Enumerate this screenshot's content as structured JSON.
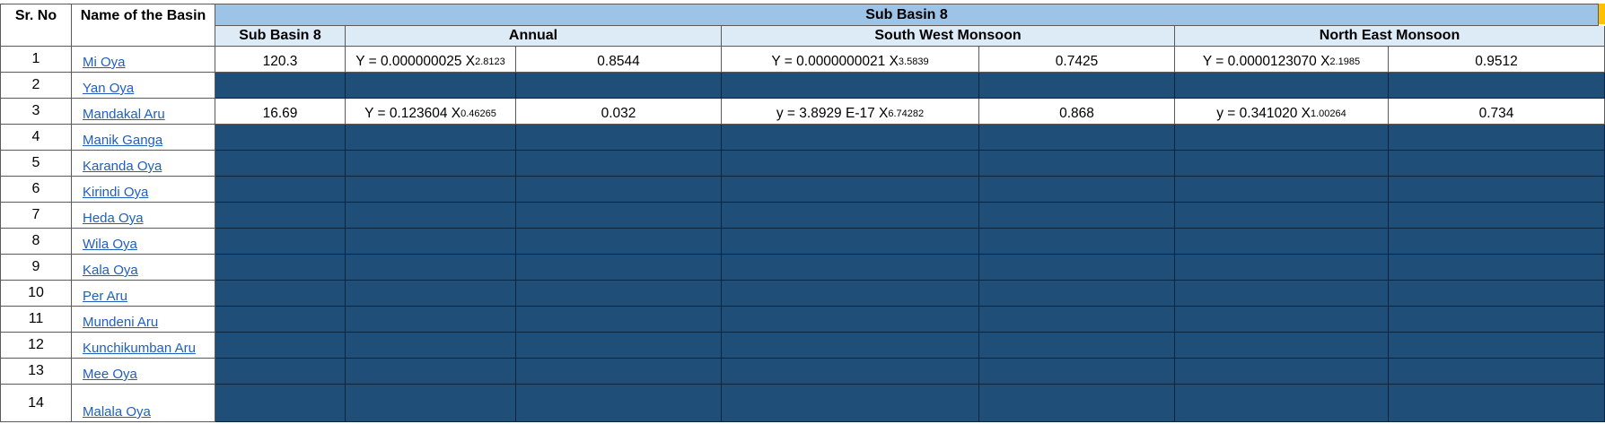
{
  "headers": {
    "sr_no": "Sr. No",
    "basin_name": "Name of the Basin",
    "sub_basin_title": "Sub Basin 8",
    "col_sub_basin": "Sub Basin 8",
    "col_annual": "Annual",
    "col_swm": "South West Monsoon",
    "col_nem": "North East Monsoon"
  },
  "rows": [
    {
      "sr": "1",
      "name": "Mi Oya",
      "sub": "120.3",
      "ann_eq": "Y = 0.000000025 X",
      "ann_exp": "2.8123",
      "ann_r": "0.8544",
      "swm_eq": "Y = 0.0000000021 X",
      "swm_exp": "3.5839",
      "swm_r": "0.7425",
      "nem_eq": "Y = 0.0000123070 X",
      "nem_exp": "2.1985",
      "nem_r": "0.9512"
    },
    {
      "sr": "2",
      "name": "Yan Oya"
    },
    {
      "sr": "3",
      "name": "Mandakal Aru",
      "sub": "16.69",
      "ann_eq": "Y = 0.123604 X",
      "ann_exp": "0.46265",
      "ann_r": "0.032",
      "swm_eq": "y = 3.8929 E-17 X",
      "swm_exp": "6.74282",
      "swm_r": "0.868",
      "nem_eq": "y = 0.341020 X",
      "nem_exp": "1.00264",
      "nem_r": "0.734"
    },
    {
      "sr": "4",
      "name": "Manik Ganga"
    },
    {
      "sr": "5",
      "name": "Karanda Oya"
    },
    {
      "sr": "6",
      "name": "Kirindi Oya"
    },
    {
      "sr": "7",
      "name": "Heda Oya"
    },
    {
      "sr": "8",
      "name": "Wila Oya"
    },
    {
      "sr": "9",
      "name": "Kala Oya"
    },
    {
      "sr": "10",
      "name": "Per Aru"
    },
    {
      "sr": "11",
      "name": "Mundeni Aru"
    },
    {
      "sr": "12",
      "name": "Kunchikumban Aru"
    },
    {
      "sr": "13",
      "name": "Mee Oya"
    },
    {
      "sr": "14",
      "name": "Malala Oya"
    }
  ],
  "colors": {
    "header_band": "#9dc3e6",
    "subheader_band": "#ddebf7",
    "empty_fill": "#1f4e79",
    "link": "#1f5fbf"
  }
}
